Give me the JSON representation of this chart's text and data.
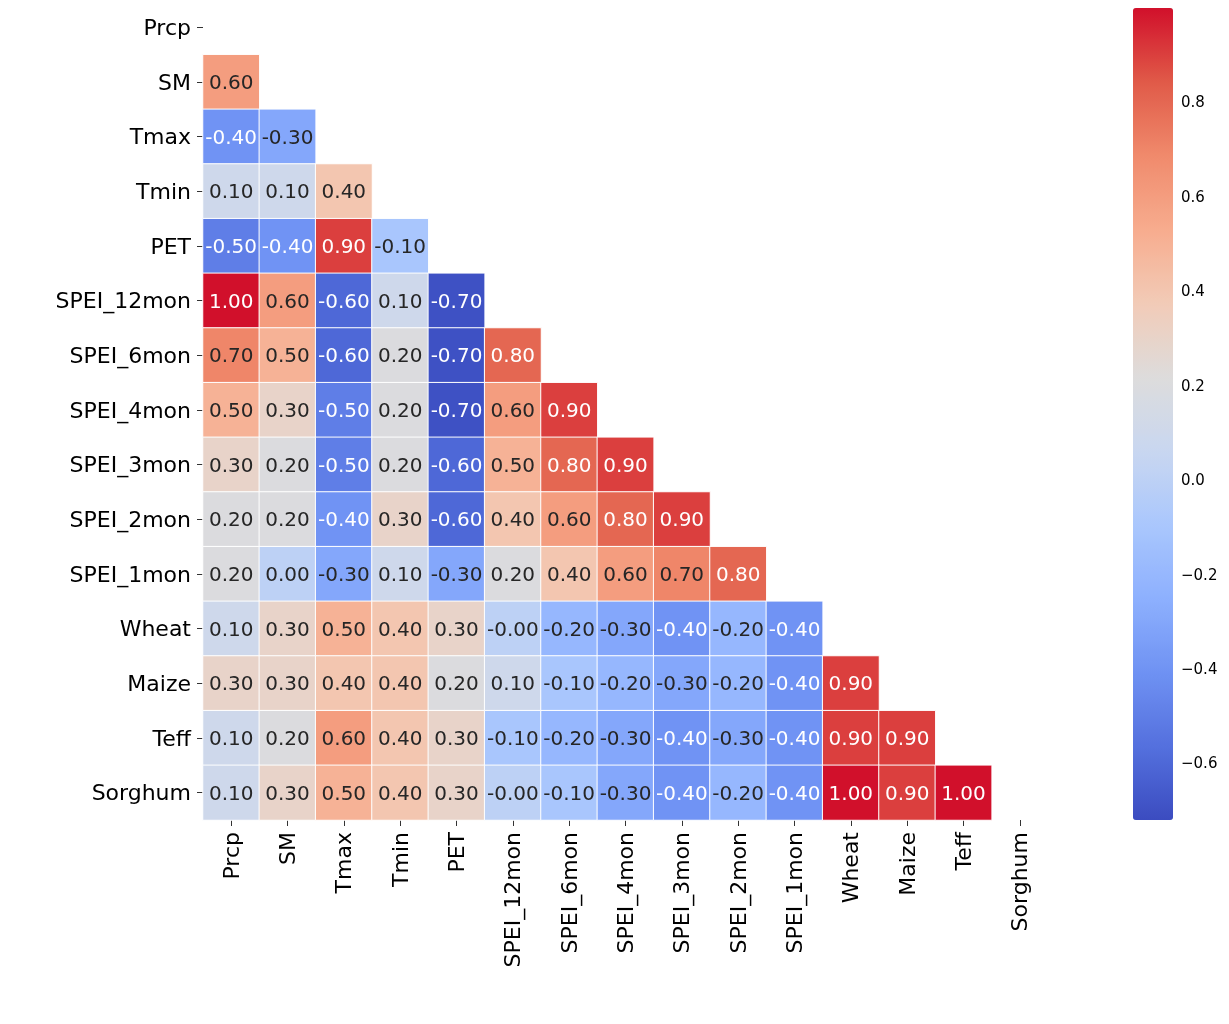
{
  "chart_data": {
    "type": "heatmap",
    "categories": [
      "Prcp",
      "SM",
      "Tmax",
      "Tmin",
      "PET",
      "SPEI_12mon",
      "SPEI_6mon",
      "SPEI_4mon",
      "SPEI_3mon",
      "SPEI_2mon",
      "SPEI_1mon",
      "Wheat",
      "Maize",
      "Teff",
      "Sorghum"
    ],
    "y_categories": [
      "Prcp",
      "SM",
      "Tmax",
      "Tmin",
      "PET",
      "SPEI_12mon",
      "SPEI_6mon",
      "SPEI_4mon",
      "SPEI_3mon",
      "SPEI_2mon",
      "SPEI_1mon",
      "Wheat",
      "Maize",
      "Teff",
      "Sorghum"
    ],
    "cells": [
      [
        null,
        null,
        null,
        null,
        null,
        null,
        null,
        null,
        null,
        null,
        null,
        null,
        null,
        null,
        null
      ],
      [
        0.6,
        null,
        null,
        null,
        null,
        null,
        null,
        null,
        null,
        null,
        null,
        null,
        null,
        null,
        null
      ],
      [
        -0.4,
        -0.3,
        null,
        null,
        null,
        null,
        null,
        null,
        null,
        null,
        null,
        null,
        null,
        null,
        null
      ],
      [
        0.1,
        0.1,
        0.4,
        null,
        null,
        null,
        null,
        null,
        null,
        null,
        null,
        null,
        null,
        null,
        null
      ],
      [
        -0.5,
        -0.4,
        0.9,
        -0.1,
        null,
        null,
        null,
        null,
        null,
        null,
        null,
        null,
        null,
        null,
        null
      ],
      [
        1.0,
        0.6,
        -0.6,
        0.1,
        -0.7,
        null,
        null,
        null,
        null,
        null,
        null,
        null,
        null,
        null,
        null
      ],
      [
        0.7,
        0.5,
        -0.6,
        0.2,
        -0.7,
        0.8,
        null,
        null,
        null,
        null,
        null,
        null,
        null,
        null,
        null
      ],
      [
        0.5,
        0.3,
        -0.5,
        0.2,
        -0.7,
        0.6,
        0.9,
        null,
        null,
        null,
        null,
        null,
        null,
        null,
        null
      ],
      [
        0.3,
        0.2,
        -0.5,
        0.2,
        -0.6,
        0.5,
        0.8,
        0.9,
        null,
        null,
        null,
        null,
        null,
        null,
        null
      ],
      [
        0.2,
        0.2,
        -0.4,
        0.3,
        -0.6,
        0.4,
        0.6,
        0.8,
        0.9,
        null,
        null,
        null,
        null,
        null,
        null
      ],
      [
        0.2,
        0.0,
        -0.3,
        0.1,
        -0.3,
        0.2,
        0.4,
        0.6,
        0.7,
        0.8,
        null,
        null,
        null,
        null,
        null
      ],
      [
        0.1,
        0.3,
        0.5,
        0.4,
        0.3,
        0.0,
        -0.2,
        -0.3,
        -0.4,
        -0.2,
        -0.4,
        null,
        null,
        null,
        null
      ],
      [
        0.3,
        0.3,
        0.4,
        0.4,
        0.2,
        0.1,
        -0.1,
        -0.2,
        -0.3,
        -0.2,
        -0.4,
        0.9,
        null,
        null,
        null
      ],
      [
        0.1,
        0.2,
        0.6,
        0.4,
        0.3,
        -0.1,
        -0.2,
        -0.3,
        -0.4,
        -0.3,
        -0.4,
        0.9,
        0.9,
        null,
        null
      ],
      [
        0.1,
        0.3,
        0.5,
        0.4,
        0.3,
        0.0,
        -0.1,
        -0.3,
        -0.4,
        -0.2,
        -0.4,
        1.0,
        0.9,
        1.0,
        null
      ]
    ],
    "cell_labels": [
      [
        null,
        null,
        null,
        null,
        null,
        null,
        null,
        null,
        null,
        null,
        null,
        null,
        null,
        null,
        null
      ],
      [
        "0.60",
        null,
        null,
        null,
        null,
        null,
        null,
        null,
        null,
        null,
        null,
        null,
        null,
        null,
        null
      ],
      [
        "-0.40",
        "-0.30",
        null,
        null,
        null,
        null,
        null,
        null,
        null,
        null,
        null,
        null,
        null,
        null,
        null
      ],
      [
        "0.10",
        "0.10",
        "0.40",
        null,
        null,
        null,
        null,
        null,
        null,
        null,
        null,
        null,
        null,
        null,
        null
      ],
      [
        "-0.50",
        "-0.40",
        "0.90",
        "-0.10",
        null,
        null,
        null,
        null,
        null,
        null,
        null,
        null,
        null,
        null,
        null
      ],
      [
        "1.00",
        "0.60",
        "-0.60",
        "0.10",
        "-0.70",
        null,
        null,
        null,
        null,
        null,
        null,
        null,
        null,
        null,
        null
      ],
      [
        "0.70",
        "0.50",
        "-0.60",
        "0.20",
        "-0.70",
        "0.80",
        null,
        null,
        null,
        null,
        null,
        null,
        null,
        null,
        null
      ],
      [
        "0.50",
        "0.30",
        "-0.50",
        "0.20",
        "-0.70",
        "0.60",
        "0.90",
        null,
        null,
        null,
        null,
        null,
        null,
        null,
        null
      ],
      [
        "0.30",
        "0.20",
        "-0.50",
        "0.20",
        "-0.60",
        "0.50",
        "0.80",
        "0.90",
        null,
        null,
        null,
        null,
        null,
        null,
        null
      ],
      [
        "0.20",
        "0.20",
        "-0.40",
        "0.30",
        "-0.60",
        "0.40",
        "0.60",
        "0.80",
        "0.90",
        null,
        null,
        null,
        null,
        null,
        null
      ],
      [
        "0.20",
        "0.00",
        "-0.30",
        "0.10",
        "-0.30",
        "0.20",
        "0.40",
        "0.60",
        "0.70",
        "0.80",
        null,
        null,
        null,
        null,
        null
      ],
      [
        "0.10",
        "0.30",
        "0.50",
        "0.40",
        "0.30",
        "-0.00",
        "-0.20",
        "-0.30",
        "-0.40",
        "-0.20",
        "-0.40",
        null,
        null,
        null,
        null
      ],
      [
        "0.30",
        "0.30",
        "0.40",
        "0.40",
        "0.20",
        "0.10",
        "-0.10",
        "-0.20",
        "-0.30",
        "-0.20",
        "-0.40",
        "0.90",
        null,
        null,
        null
      ],
      [
        "0.10",
        "0.20",
        "0.60",
        "0.40",
        "0.30",
        "-0.10",
        "-0.20",
        "-0.30",
        "-0.40",
        "-0.30",
        "-0.40",
        "0.90",
        "0.90",
        null,
        null
      ],
      [
        "0.10",
        "0.30",
        "0.50",
        "0.40",
        "0.30",
        "-0.00",
        "-0.10",
        "-0.30",
        "-0.40",
        "-0.20",
        "-0.40",
        "1.00",
        "0.90",
        "1.00",
        null
      ]
    ],
    "clim": [
      -0.72,
      1.0
    ],
    "cticks": [
      {
        "value": -0.6,
        "label": "−0.6"
      },
      {
        "value": -0.4,
        "label": "−0.4"
      },
      {
        "value": -0.2,
        "label": "−0.2"
      },
      {
        "value": 0.0,
        "label": "0.0"
      },
      {
        "value": 0.2,
        "label": "0.2"
      },
      {
        "value": 0.4,
        "label": "0.4"
      },
      {
        "value": 0.6,
        "label": "0.6"
      },
      {
        "value": 0.8,
        "label": "0.8"
      }
    ]
  }
}
